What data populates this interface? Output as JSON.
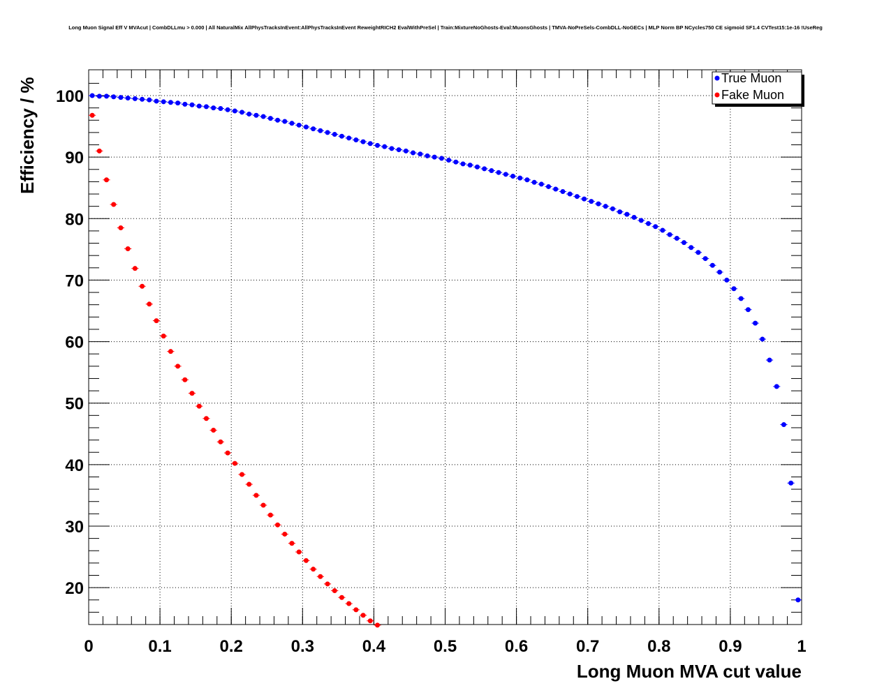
{
  "chart_data": {
    "type": "scatter",
    "title": "Long Muon Signal Eff V MVAcut | CombDLLmu > 0.000 | All NaturalMix AllPhysTracksInEvent:AllPhysTracksInEvent ReweightRICH2 EvalWithPreSel | Train:MixtureNoGhosts-Eval:MuonsGhosts | TMVA-NoPreSels-CombDLL-NoGECs | MLP Norm BP NCycles750 CE sigmoid SF1.4 CVTest15:1e-16 !UseReg",
    "xlabel": "Long Muon MVA cut value",
    "ylabel": "Efficiency / %",
    "xlim": [
      0,
      1
    ],
    "ylim": [
      14,
      104.2
    ],
    "xticks": [
      "0",
      "0.1",
      "0.2",
      "0.3",
      "0.4",
      "0.5",
      "0.6",
      "0.7",
      "0.8",
      "0.9",
      "1"
    ],
    "yticks": [
      "20",
      "30",
      "40",
      "50",
      "60",
      "70",
      "80",
      "90",
      "100"
    ],
    "grid": true,
    "legend_position": "top-right",
    "bin_width": 0.01,
    "series": [
      {
        "name": "True Muon",
        "color": "#0000ff",
        "x_start": 0.005,
        "values": [
          100.0,
          99.9,
          99.9,
          99.8,
          99.7,
          99.6,
          99.5,
          99.4,
          99.3,
          99.1,
          99.0,
          98.9,
          98.8,
          98.6,
          98.5,
          98.3,
          98.2,
          98.0,
          97.9,
          97.7,
          97.5,
          97.3,
          97.0,
          96.8,
          96.6,
          96.3,
          96.0,
          95.8,
          95.5,
          95.2,
          94.9,
          94.6,
          94.3,
          94.0,
          93.7,
          93.4,
          93.1,
          92.8,
          92.5,
          92.2,
          91.9,
          91.7,
          91.4,
          91.2,
          91.0,
          90.7,
          90.5,
          90.2,
          90.0,
          89.8,
          89.5,
          89.2,
          88.9,
          88.7,
          88.4,
          88.1,
          87.8,
          87.5,
          87.2,
          86.9,
          86.6,
          86.3,
          85.9,
          85.6,
          85.2,
          84.8,
          84.4,
          84.0,
          83.6,
          83.2,
          82.8,
          82.4,
          82.0,
          81.6,
          81.1,
          80.7,
          80.2,
          79.7,
          79.2,
          78.7,
          78.1,
          77.4,
          76.8,
          76.1,
          75.3,
          74.5,
          73.5,
          72.4,
          71.3,
          70.0,
          68.6,
          67.0,
          65.2,
          63.0,
          60.4,
          57.0,
          52.7,
          46.5,
          37.0,
          18.0
        ]
      },
      {
        "name": "Fake Muon",
        "color": "#ff0000",
        "x_start": 0.005,
        "values": [
          96.8,
          91.0,
          86.3,
          82.3,
          78.5,
          75.1,
          71.9,
          69.0,
          66.1,
          63.4,
          60.9,
          58.4,
          56.0,
          53.8,
          51.6,
          49.5,
          47.5,
          45.6,
          43.7,
          41.9,
          40.2,
          38.4,
          36.8,
          35.0,
          33.4,
          31.8,
          30.2,
          28.7,
          27.2,
          25.8,
          24.4,
          23.0,
          21.8,
          20.6,
          19.5,
          18.4,
          17.4,
          16.4,
          15.5,
          14.6,
          13.9
        ]
      }
    ]
  }
}
